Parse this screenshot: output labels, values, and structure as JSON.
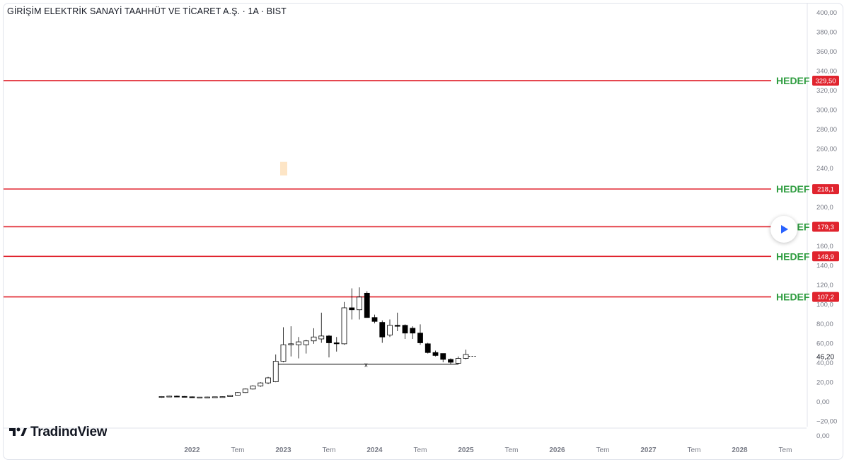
{
  "header": {
    "title": "GİRİŞİM ELEKTRİK SANAYİ TAAHHÜT VE TİCARET A.Ş. · 1A · BIST"
  },
  "branding": {
    "logo_text": "TradingView",
    "logo_icon": "tradingview-logo-icon"
  },
  "controls": {
    "play_icon": "play-icon"
  },
  "colors": {
    "target_line": "#e0242e",
    "target_label": "#2e9c3f",
    "price_tag_bg": "#e0242e",
    "candle_up_fill": "#ffffff",
    "candle_down_fill": "#000000",
    "candle_border": "#000000",
    "highlight_rect": "#fde5c6",
    "axis_text": "#787b86",
    "play_icon": "#2962ff"
  },
  "chart_data": {
    "type": "candlestick",
    "interval": "1A",
    "exchange": "BIST",
    "y_axis": {
      "ylim": [
        -22,
        402
      ],
      "ticks": [
        {
          "value": 400,
          "label": "400,00"
        },
        {
          "value": 380,
          "label": "380,00"
        },
        {
          "value": 360,
          "label": "360,00"
        },
        {
          "value": 340,
          "label": "340,00"
        },
        {
          "value": 320,
          "label": "320,00"
        },
        {
          "value": 300,
          "label": "300,00"
        },
        {
          "value": 280,
          "label": "280,00"
        },
        {
          "value": 260,
          "label": "260,00"
        },
        {
          "value": 240,
          "label": "240,0"
        },
        {
          "value": 220,
          "label": "220,0"
        },
        {
          "value": 200,
          "label": "200,0"
        },
        {
          "value": 180,
          "label": "180,0"
        },
        {
          "value": 160,
          "label": "160,0"
        },
        {
          "value": 140,
          "label": "140,0"
        },
        {
          "value": 120,
          "label": "120,0"
        },
        {
          "value": 100,
          "label": "100,0"
        },
        {
          "value": 80,
          "label": "80,00"
        },
        {
          "value": 60,
          "label": "60,00"
        },
        {
          "value": 40,
          "label": "40,00"
        },
        {
          "value": 20,
          "label": "20,00"
        },
        {
          "value": 0,
          "label": "0,00"
        },
        {
          "value": -20,
          "label": "−20,00"
        }
      ],
      "bottom_label": "0,00"
    },
    "x_axis": {
      "ticks": [
        {
          "date": "2022-01",
          "label": "2022",
          "bold": true
        },
        {
          "date": "2022-07",
          "label": "Tem",
          "bold": false
        },
        {
          "date": "2023-01",
          "label": "2023",
          "bold": true
        },
        {
          "date": "2023-07",
          "label": "Tem",
          "bold": false
        },
        {
          "date": "2024-01",
          "label": "2024",
          "bold": true
        },
        {
          "date": "2024-07",
          "label": "Tem",
          "bold": false
        },
        {
          "date": "2025-01",
          "label": "2025",
          "bold": true
        },
        {
          "date": "2025-07",
          "label": "Tem",
          "bold": false
        },
        {
          "date": "2026-01",
          "label": "2026",
          "bold": true
        },
        {
          "date": "2026-07",
          "label": "Tem",
          "bold": false
        },
        {
          "date": "2027-01",
          "label": "2027",
          "bold": true
        },
        {
          "date": "2027-07",
          "label": "Tem",
          "bold": false
        },
        {
          "date": "2028-01",
          "label": "2028",
          "bold": true
        },
        {
          "date": "2028-07",
          "label": "Tem",
          "bold": false
        }
      ]
    },
    "current_price": {
      "value": 46.2,
      "label": "46,20"
    },
    "targets": [
      {
        "value": 329.5,
        "label": "HEDEF",
        "tag": "329,50"
      },
      {
        "value": 218.1,
        "label": "HEDEF",
        "tag": "218,1"
      },
      {
        "value": 179.3,
        "label": "HEDEF",
        "tag": "179,3"
      },
      {
        "value": 148.9,
        "label": "HEDEF",
        "tag": "148,9"
      },
      {
        "value": 107.2,
        "label": "HEDEF",
        "tag": "107,2"
      }
    ],
    "support_line": {
      "value": 38,
      "from": "2022-11",
      "to": "2024-12",
      "marker": "x"
    },
    "highlight_zone": {
      "date": "2023-01",
      "low": 232,
      "high": 246
    },
    "candles": [
      {
        "date": "2021-09",
        "o": 4.0,
        "h": 5.2,
        "l": 3.5,
        "c": 4.8
      },
      {
        "date": "2021-10",
        "o": 4.8,
        "h": 5.6,
        "l": 4.3,
        "c": 5.2
      },
      {
        "date": "2021-11",
        "o": 5.2,
        "h": 5.8,
        "l": 4.6,
        "c": 4.9
      },
      {
        "date": "2021-12",
        "o": 4.9,
        "h": 5.3,
        "l": 4.2,
        "c": 4.5
      },
      {
        "date": "2022-01",
        "o": 4.5,
        "h": 4.9,
        "l": 3.6,
        "c": 3.9
      },
      {
        "date": "2022-02",
        "o": 3.9,
        "h": 4.4,
        "l": 3.5,
        "c": 4.2
      },
      {
        "date": "2022-03",
        "o": 4.2,
        "h": 4.6,
        "l": 3.8,
        "c": 4.3
      },
      {
        "date": "2022-04",
        "o": 4.3,
        "h": 4.7,
        "l": 3.9,
        "c": 4.5
      },
      {
        "date": "2022-05",
        "o": 4.5,
        "h": 4.9,
        "l": 4.1,
        "c": 4.7
      },
      {
        "date": "2022-06",
        "o": 4.7,
        "h": 6.5,
        "l": 4.4,
        "c": 6.2
      },
      {
        "date": "2022-07",
        "o": 6.2,
        "h": 9.5,
        "l": 6.0,
        "c": 8.9
      },
      {
        "date": "2022-08",
        "o": 8.9,
        "h": 13.0,
        "l": 8.5,
        "c": 12.5
      },
      {
        "date": "2022-09",
        "o": 12.5,
        "h": 16.5,
        "l": 12.0,
        "c": 15.7
      },
      {
        "date": "2022-10",
        "o": 15.7,
        "h": 19.5,
        "l": 14.8,
        "c": 18.8
      },
      {
        "date": "2022-11",
        "o": 18.8,
        "h": 25.0,
        "l": 17.5,
        "c": 24.0
      },
      {
        "date": "2022-12",
        "o": 20.0,
        "h": 48.0,
        "l": 19.5,
        "c": 41.0
      },
      {
        "date": "2023-01",
        "o": 41.0,
        "h": 76.0,
        "l": 40.0,
        "c": 58.0
      },
      {
        "date": "2023-02",
        "o": 58.0,
        "h": 77.0,
        "l": 46.0,
        "c": 59.0
      },
      {
        "date": "2023-03",
        "o": 58.0,
        "h": 66.0,
        "l": 44.0,
        "c": 61.0
      },
      {
        "date": "2023-04",
        "o": 58.0,
        "h": 63.0,
        "l": 49.0,
        "c": 62.0
      },
      {
        "date": "2023-05",
        "o": 62.0,
        "h": 75.0,
        "l": 59.0,
        "c": 66.0
      },
      {
        "date": "2023-06",
        "o": 64.0,
        "h": 91.0,
        "l": 60.0,
        "c": 67.0
      },
      {
        "date": "2023-07",
        "o": 67.0,
        "h": 68.0,
        "l": 45.0,
        "c": 60.0
      },
      {
        "date": "2023-08",
        "o": 60.0,
        "h": 66.0,
        "l": 51.0,
        "c": 59.0
      },
      {
        "date": "2023-09",
        "o": 59.0,
        "h": 102.0,
        "l": 58.0,
        "c": 96.0
      },
      {
        "date": "2023-10",
        "o": 96.0,
        "h": 116.0,
        "l": 84.0,
        "c": 94.0
      },
      {
        "date": "2023-11",
        "o": 94.0,
        "h": 117.0,
        "l": 84.0,
        "c": 107.0
      },
      {
        "date": "2023-12",
        "o": 111.0,
        "h": 113.0,
        "l": 86.0,
        "c": 86.0
      },
      {
        "date": "2024-01",
        "o": 86.0,
        "h": 89.0,
        "l": 80.0,
        "c": 82.0
      },
      {
        "date": "2024-02",
        "o": 81.0,
        "h": 83.0,
        "l": 60.0,
        "c": 66.0
      },
      {
        "date": "2024-03",
        "o": 68.0,
        "h": 84.0,
        "l": 66.0,
        "c": 78.0
      },
      {
        "date": "2024-04",
        "o": 78.0,
        "h": 91.0,
        "l": 72.0,
        "c": 77.0
      },
      {
        "date": "2024-05",
        "o": 78.0,
        "h": 79.0,
        "l": 64.0,
        "c": 70.0
      },
      {
        "date": "2024-06",
        "o": 75.0,
        "h": 77.0,
        "l": 64.0,
        "c": 70.0
      },
      {
        "date": "2024-07",
        "o": 70.0,
        "h": 79.0,
        "l": 58.0,
        "c": 60.0
      },
      {
        "date": "2024-08",
        "o": 59.0,
        "h": 60.0,
        "l": 49.0,
        "c": 50.0
      },
      {
        "date": "2024-09",
        "o": 50.0,
        "h": 52.0,
        "l": 46.0,
        "c": 47.0
      },
      {
        "date": "2024-10",
        "o": 49.0,
        "h": 49.0,
        "l": 40.0,
        "c": 43.0
      },
      {
        "date": "2024-11",
        "o": 43.0,
        "h": 44.0,
        "l": 38.0,
        "c": 40.0
      },
      {
        "date": "2024-12",
        "o": 39.0,
        "h": 46.0,
        "l": 38.0,
        "c": 44.0
      },
      {
        "date": "2025-01",
        "o": 44.0,
        "h": 53.0,
        "l": 43.0,
        "c": 48.0
      }
    ]
  }
}
